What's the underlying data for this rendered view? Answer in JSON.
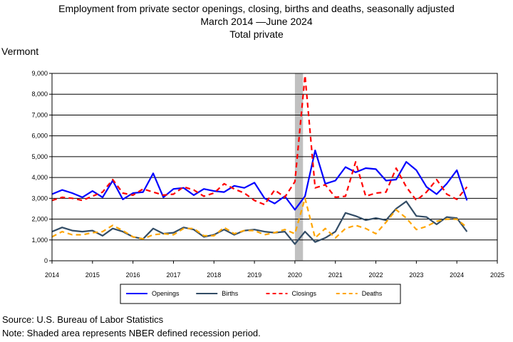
{
  "header": {
    "title_line1": "Employment from private sector openings, closing, births and deaths, seasonally adjusted",
    "title_line2": "March 2014 —June 2024",
    "title_line3": "Total private",
    "region": "Vermont"
  },
  "footer": {
    "source": "Source: U.S. Bureau of Labor Statistics",
    "note": "Note: Shaded area represents NBER defined recession period."
  },
  "chart_data": {
    "type": "line",
    "title": "Employment from private sector openings, closing, births and deaths, seasonally adjusted",
    "ylim": [
      0,
      9000
    ],
    "xlim": [
      2014,
      2025
    ],
    "y_ticks": [
      "0",
      "1,000",
      "2,000",
      "3,000",
      "4,000",
      "5,000",
      "6,000",
      "7,000",
      "8,000",
      "9,000"
    ],
    "x_ticks": [
      "2014",
      "2015",
      "2016",
      "2017",
      "2018",
      "2019",
      "2020",
      "2021",
      "2022",
      "2023",
      "2024",
      "2025"
    ],
    "grid": true,
    "legend_position": "bottom",
    "recession": [
      2020.0,
      2020.2
    ],
    "x_start": "2014 Q1",
    "x": [
      "2014 Q1",
      "2014 Q2",
      "2014 Q3",
      "2014 Q4",
      "2015 Q1",
      "2015 Q2",
      "2015 Q3",
      "2015 Q4",
      "2016 Q1",
      "2016 Q2",
      "2016 Q3",
      "2016 Q4",
      "2017 Q1",
      "2017 Q2",
      "2017 Q3",
      "2017 Q4",
      "2018 Q1",
      "2018 Q2",
      "2018 Q3",
      "2018 Q4",
      "2019 Q1",
      "2019 Q2",
      "2019 Q3",
      "2019 Q4",
      "2020 Q1",
      "2020 Q2",
      "2020 Q3",
      "2020 Q4",
      "2021 Q1",
      "2021 Q2",
      "2021 Q3",
      "2021 Q4",
      "2022 Q1",
      "2022 Q2",
      "2022 Q3",
      "2022 Q4",
      "2023 Q1",
      "2023 Q2",
      "2023 Q3",
      "2023 Q4",
      "2024 Q1",
      "2024 Q2"
    ],
    "series": [
      {
        "name": "Openings",
        "color": "#0000ff",
        "dash": "solid",
        "values": [
          3200,
          3400,
          3250,
          3050,
          3350,
          3050,
          3850,
          2950,
          3250,
          3300,
          4200,
          3050,
          3450,
          3500,
          3150,
          3450,
          3350,
          3300,
          3600,
          3500,
          3750,
          3000,
          2750,
          3100,
          2450,
          3100,
          5300,
          3700,
          3850,
          4500,
          4250,
          4450,
          4400,
          3850,
          3900,
          4750,
          4350,
          3550,
          3200,
          3700,
          4350,
          2900
        ]
      },
      {
        "name": "Births",
        "color": "#334d66",
        "dash": "solid",
        "values": [
          1400,
          1600,
          1450,
          1400,
          1450,
          1200,
          1550,
          1400,
          1150,
          1050,
          1550,
          1300,
          1350,
          1600,
          1500,
          1150,
          1250,
          1500,
          1250,
          1450,
          1500,
          1400,
          1350,
          1400,
          800,
          1400,
          900,
          1100,
          1400,
          2300,
          2150,
          1950,
          2050,
          1950,
          2500,
          2850,
          2150,
          2100,
          1750,
          2100,
          2050,
          1400
        ]
      },
      {
        "name": "Closings",
        "color": "#ff0000",
        "dash": "dashed",
        "values": [
          2900,
          3050,
          3000,
          2900,
          3100,
          3300,
          3900,
          3250,
          3150,
          3450,
          3300,
          3150,
          3200,
          3550,
          3400,
          3100,
          3250,
          3700,
          3450,
          3250,
          2900,
          2700,
          3400,
          3050,
          3800,
          8900,
          3500,
          3650,
          3050,
          3100,
          4750,
          3100,
          3250,
          3300,
          4450,
          3550,
          2900,
          3300,
          3900,
          3200,
          2950,
          3550
        ]
      },
      {
        "name": "Deaths",
        "color": "#ffa500",
        "dash": "dashed",
        "values": [
          1150,
          1400,
          1250,
          1250,
          1350,
          1400,
          1700,
          1450,
          1150,
          1050,
          1250,
          1300,
          1250,
          1550,
          1550,
          1200,
          1200,
          1600,
          1300,
          1450,
          1450,
          1250,
          1350,
          1500,
          1300,
          3000,
          1100,
          1550,
          1100,
          1550,
          1700,
          1550,
          1300,
          1850,
          2450,
          2050,
          1500,
          1650,
          1900,
          2000,
          2000,
          1600
        ]
      }
    ]
  }
}
